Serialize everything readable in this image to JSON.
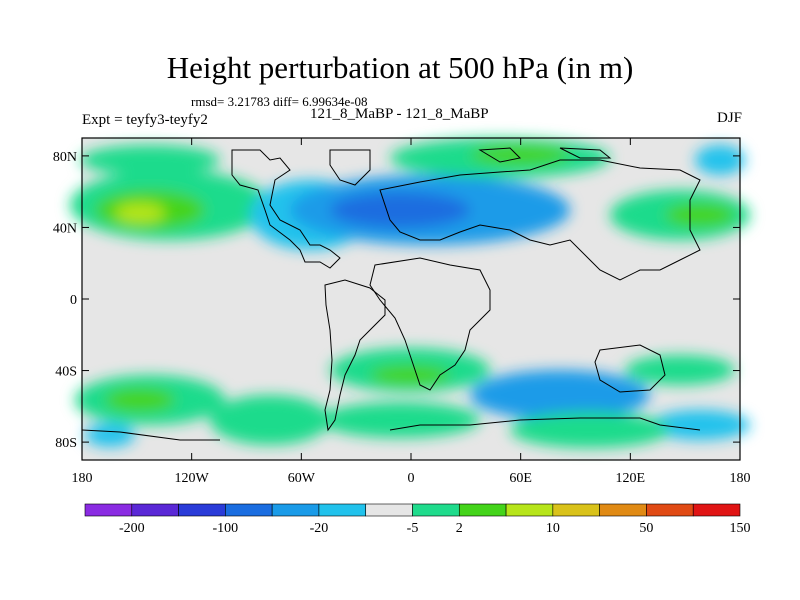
{
  "title": "Height perturbation at 500 hPa (in m)",
  "stats_line": "rmsd= 3.21783 diff= 6.99634e-08",
  "experiment": "Expt = teyfy3-teyfy2",
  "run_label": "121_8_MaBP - 121_8_MaBP",
  "season": "DJF",
  "map": {
    "projection": "cylindrical equidistant",
    "lon_ticks": [
      "180",
      "120W",
      "60W",
      "0",
      "60E",
      "120E",
      "180"
    ],
    "lat_ticks": [
      "80N",
      "40N",
      "0",
      "40S",
      "80S"
    ],
    "background_color": "#e6e6e6",
    "coastline_color": "#000000"
  },
  "colorbar": {
    "colors": [
      "#8a2be2",
      "#5a28d6",
      "#2a3bd8",
      "#1a6de0",
      "#1a9be8",
      "#21c2ec",
      "#e6e6e6",
      "#1fdb8c",
      "#44d41a",
      "#b7e51a",
      "#d9c21a",
      "#e08a14",
      "#e04a14",
      "#e01414"
    ],
    "labels": [
      "-200",
      "-100",
      "-20",
      "-5",
      "2",
      "10",
      "50",
      "150"
    ]
  },
  "contour_blobs": [
    {
      "lon": -150,
      "lat": 48,
      "level": "+10",
      "color": "#44d41a"
    },
    {
      "lon": -120,
      "lat": 40,
      "level": "+50",
      "color": "#b7e51a"
    },
    {
      "lon": -30,
      "lat": 45,
      "level": "-20",
      "color": "#1a6de0"
    },
    {
      "lon": 40,
      "lat": 45,
      "level": "-20",
      "color": "#1a6de0"
    },
    {
      "lon": 40,
      "lat": 78,
      "level": "+10",
      "color": "#44d41a"
    },
    {
      "lon": 150,
      "lat": 42,
      "level": "+10",
      "color": "#44d41a"
    },
    {
      "lon": -140,
      "lat": -55,
      "level": "+10",
      "color": "#44d41a"
    },
    {
      "lon": 10,
      "lat": -45,
      "level": "+10",
      "color": "#44d41a"
    },
    {
      "lon": 80,
      "lat": -55,
      "level": "-5",
      "color": "#1a9be8"
    },
    {
      "lon": 135,
      "lat": -40,
      "level": "+2",
      "color": "#1fdb8c"
    }
  ]
}
